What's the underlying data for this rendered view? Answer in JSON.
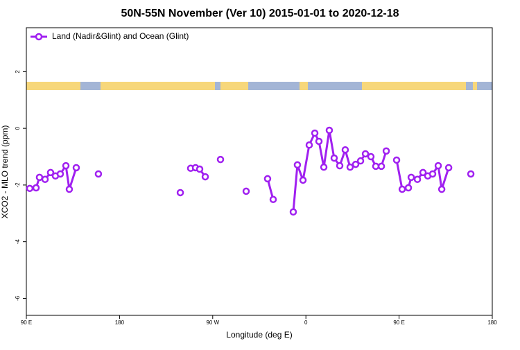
{
  "chart_data": {
    "type": "line",
    "title": "50N-55N November (Ver 10)   2015-01-01 to 2020-12-18",
    "x_label": "Longitude (deg E)",
    "y_label": "XCO2 - MLO trend (ppm)",
    "xlim": [
      90,
      540
    ],
    "ylim": [
      -6.6,
      3.55
    ],
    "xticks": [
      {
        "value": 90,
        "label": "90 E"
      },
      180,
      {
        "value": 270,
        "label": "90 W"
      },
      {
        "value": 360,
        "label": "0"
      },
      {
        "value": 450,
        "label": "90 E"
      },
      {
        "value": 540,
        "label": "180"
      }
    ],
    "yticks": [
      2,
      0,
      -2,
      -4,
      -6
    ],
    "legend": "topleft",
    "x": [
      93.3,
      99.4,
      102.7,
      108.1,
      113.4,
      118.1,
      122.8,
      128.2,
      131.5,
      138.2,
      149,
      159.6,
      199,
      238.7,
      244,
      248.7,
      253.4,
      257.4,
      262.8,
      270,
      277.5,
      290,
      302.3,
      312,
      323.0,
      328.4,
      338,
      347.8,
      351.8,
      357.2,
      363.2,
      368.6,
      372.6,
      377.3,
      382.6,
      387.3,
      392.7,
      398.0,
      402.7,
      408.1,
      412.8,
      417.5,
      422.8,
      427.5,
      432.9,
      437.6,
      442,
      447.6,
      453.0,
      459.0,
      461.7,
      467.7,
      473.1,
      477.7,
      482.4,
      487.8,
      491.2,
      497.9,
      509,
      519.3
    ],
    "series": [
      {
        "name": "Land (Nadir&Glint) and Ocean (Glint)",
        "color": "#a020f0",
        "values": [
          -2.12,
          -2.1,
          -1.73,
          -1.8,
          -1.56,
          -1.68,
          -1.61,
          -1.32,
          -2.15,
          -1.39,
          null,
          -1.61,
          null,
          -2.27,
          null,
          -1.41,
          -1.39,
          -1.44,
          -1.71,
          null,
          -1.1,
          null,
          -2.22,
          null,
          -1.78,
          -2.51,
          null,
          -2.95,
          -1.29,
          -1.83,
          -0.59,
          -0.17,
          -0.46,
          -1.37,
          -0.07,
          -1.05,
          -1.32,
          -0.76,
          -1.37,
          -1.27,
          -1.15,
          -0.9,
          -1.0,
          -1.34,
          -1.34,
          -0.8,
          null,
          -1.12,
          -2.15,
          -2.1,
          -1.73,
          -1.8,
          -1.56,
          -1.68,
          -1.61,
          -1.32,
          -2.15,
          -1.39,
          null,
          -1.61
        ]
      }
    ]
  }
}
